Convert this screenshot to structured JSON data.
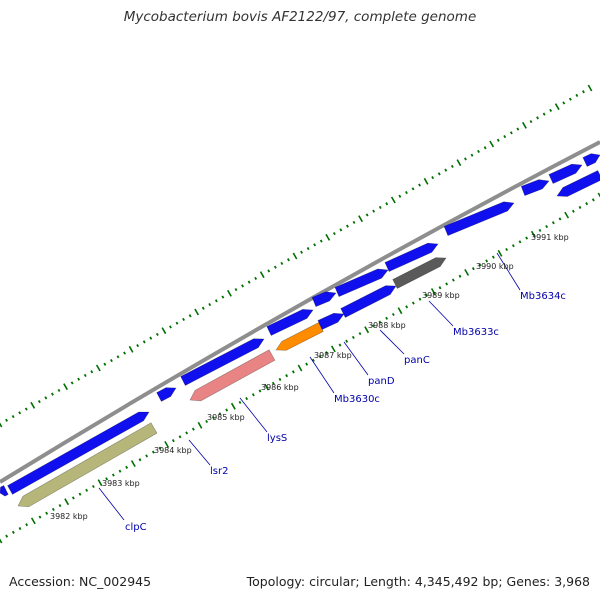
{
  "title": "Mycobacterium bovis AF2122/97, complete genome",
  "footer": {
    "accession": "Accession: NC_002945",
    "stats": "Topology: circular; Length: 4,345,492 bp; Genes: 3,968"
  },
  "colors": {
    "backbone": "#8e8e8e",
    "gene_default": "#1010ee",
    "tick": "#007000",
    "label": "#0000aa",
    "clpC": "#b6b67a",
    "lysS": "#e88484",
    "Mb3630c": "#ff8c00",
    "panC": "#5a5a5a"
  },
  "kbp_ticks": [
    "3982 kbp",
    "3983 kbp",
    "3984 kbp",
    "3985 kbp",
    "3986 kbp",
    "3987 kbp",
    "3988 kbp",
    "3989 kbp",
    "3990 kbp",
    "3991 kbp"
  ],
  "gene_labels": [
    {
      "name": "clpC",
      "color": "clpC"
    },
    {
      "name": "lsr2",
      "color": "gene_default"
    },
    {
      "name": "lysS",
      "color": "lysS"
    },
    {
      "name": "Mb3630c",
      "color": "Mb3630c"
    },
    {
      "name": "panD",
      "color": "gene_default"
    },
    {
      "name": "panC",
      "color": "panC"
    },
    {
      "name": "Mb3633c",
      "color": "gene_default"
    },
    {
      "name": "Mb3634c",
      "color": "gene_default"
    }
  ]
}
